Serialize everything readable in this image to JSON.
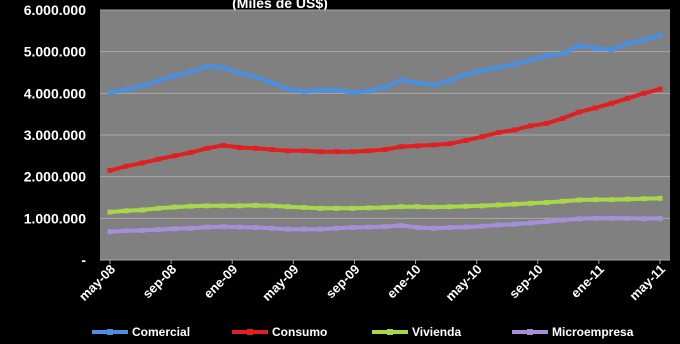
{
  "chart_data": {
    "type": "line",
    "title": "(Miles de US$)",
    "x_tick_labels": [
      "may-08",
      "sep-08",
      "ene-09",
      "may-09",
      "sep-09",
      "ene-10",
      "may-10",
      "sep-10",
      "ene-11",
      "may-11"
    ],
    "y_tick_labels": [
      "-",
      "1.000.000",
      "2.000.000",
      "3.000.000",
      "4.000.000",
      "5.000.000",
      "6.000.000"
    ],
    "ylim": [
      0,
      6000000
    ],
    "grid": "horizontal",
    "legend_position": "bottom",
    "plot_background": "#808080",
    "series": [
      {
        "name": "Comercial",
        "color": "#4a8fe0",
        "values": [
          4020000,
          4100000,
          4180000,
          4300000,
          4420000,
          4520000,
          4650000,
          4620000,
          4480000,
          4400000,
          4250000,
          4100000,
          4050000,
          4080000,
          4080000,
          4020000,
          4060000,
          4150000,
          4320000,
          4250000,
          4200000,
          4300000,
          4450000,
          4550000,
          4620000,
          4700000,
          4800000,
          4900000,
          4950000,
          5150000,
          5080000,
          5050000,
          5200000,
          5280000,
          5400000
        ]
      },
      {
        "name": "Consumo",
        "color": "#e02020",
        "values": [
          2150000,
          2250000,
          2330000,
          2420000,
          2500000,
          2580000,
          2680000,
          2750000,
          2700000,
          2680000,
          2650000,
          2620000,
          2620000,
          2600000,
          2600000,
          2600000,
          2620000,
          2650000,
          2720000,
          2740000,
          2760000,
          2790000,
          2870000,
          2960000,
          3060000,
          3120000,
          3220000,
          3280000,
          3400000,
          3550000,
          3650000,
          3760000,
          3880000,
          4000000,
          4100000
        ]
      },
      {
        "name": "Vivienda",
        "color": "#a8d84a",
        "values": [
          1150000,
          1180000,
          1200000,
          1240000,
          1270000,
          1290000,
          1300000,
          1300000,
          1300000,
          1310000,
          1300000,
          1280000,
          1260000,
          1240000,
          1240000,
          1240000,
          1250000,
          1260000,
          1280000,
          1280000,
          1270000,
          1280000,
          1290000,
          1300000,
          1320000,
          1340000,
          1360000,
          1380000,
          1410000,
          1440000,
          1450000,
          1450000,
          1460000,
          1470000,
          1480000
        ]
      },
      {
        "name": "Microempresa",
        "color": "#a58fd8",
        "values": [
          680000,
          700000,
          710000,
          730000,
          750000,
          760000,
          790000,
          800000,
          790000,
          780000,
          760000,
          740000,
          740000,
          740000,
          760000,
          780000,
          790000,
          800000,
          830000,
          780000,
          760000,
          780000,
          790000,
          810000,
          840000,
          860000,
          890000,
          920000,
          960000,
          990000,
          1000000,
          1000000,
          1000000,
          990000,
          1000000
        ]
      }
    ]
  }
}
